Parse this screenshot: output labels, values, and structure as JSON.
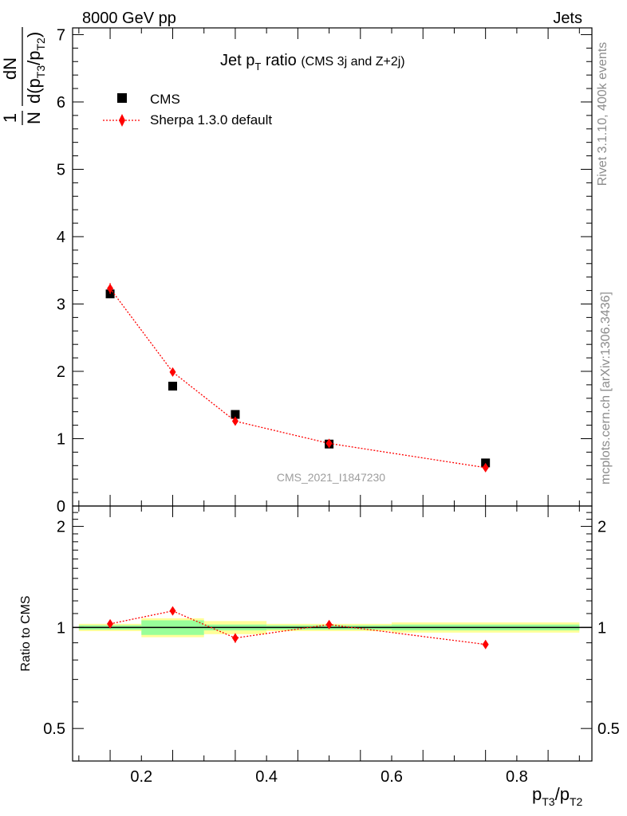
{
  "header": {
    "energy_label": "8000 GeV pp",
    "process_label": "Jets"
  },
  "side_texts": {
    "rivet": "Rivet 3.1.10,  400k events",
    "mcplots": "mcplots.cern.ch [arXiv:1306.3436]"
  },
  "watermark": "CMS_2021_I1847230",
  "colors": {
    "data": "#000000",
    "mc": "#ff0000",
    "band_inner": "#99ff99",
    "band_outer": "#ffff99",
    "grey_text": "#8c8c8c"
  },
  "chart_data": [
    {
      "type": "scatter",
      "panel": "main",
      "title": "Jet pT ratio",
      "subtitle": "(CMS 3j and Z+2j)",
      "xlabel": "pT3/pT2",
      "ylabel": "1/N dN/d(pT3/pT2)",
      "xlim": [
        0.09,
        0.92
      ],
      "ylim": [
        0,
        7.1
      ],
      "y_ticks": [
        "0",
        "1",
        "2",
        "3",
        "4",
        "5",
        "6",
        "7"
      ],
      "legend_position": "top-left",
      "x": [
        0.15,
        0.25,
        0.35,
        0.5,
        0.75
      ],
      "xerr": [
        0.05,
        0.05,
        0.05,
        0.1,
        0.15
      ],
      "series": [
        {
          "name": "CMS",
          "marker": "square",
          "values": [
            3.15,
            1.78,
            1.36,
            0.92,
            0.64
          ]
        },
        {
          "name": "Sherpa 1.3.0 default",
          "marker": "diamond",
          "line": "dotted",
          "values": [
            3.23,
            1.99,
            1.26,
            0.93,
            0.57
          ],
          "yerr": [
            0.08,
            0.05,
            0.04,
            0.03,
            0.02
          ]
        }
      ]
    },
    {
      "type": "scatter",
      "panel": "ratio",
      "ylabel": "Ratio to CMS",
      "xlabel": "pT3/pT2",
      "xlim": [
        0.09,
        0.92
      ],
      "ylim": [
        0.4,
        2.3
      ],
      "log_y": true,
      "x_ticks": [
        "0.2",
        "0.4",
        "0.6",
        "0.8"
      ],
      "y_ticks": [
        "0.5",
        "1",
        "2"
      ],
      "x": [
        0.15,
        0.25,
        0.35,
        0.5,
        0.75
      ],
      "xerr": [
        0.05,
        0.05,
        0.05,
        0.1,
        0.15
      ],
      "band_inner": [
        0.015,
        0.05,
        0.02,
        0.015,
        0.02
      ],
      "band_outer": [
        0.025,
        0.065,
        0.045,
        0.025,
        0.035
      ],
      "series": [
        {
          "name": "Sherpa 1.3.0 default",
          "values": [
            1.025,
            1.12,
            0.93,
            1.02,
            0.89
          ],
          "yerr": [
            0.02,
            0.025,
            0.03,
            0.025,
            0.025
          ]
        }
      ]
    }
  ]
}
